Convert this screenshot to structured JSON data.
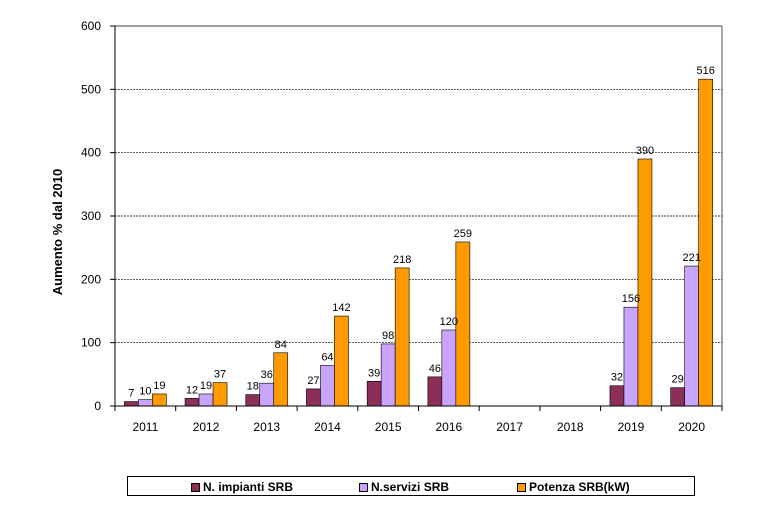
{
  "chart_data": {
    "type": "bar",
    "categories": [
      "2011",
      "2012",
      "2013",
      "2014",
      "2015",
      "2016",
      "2017",
      "2018",
      "2019",
      "2020"
    ],
    "series": [
      {
        "name": "N. impianti SRB",
        "color": "#8b2f58",
        "values": [
          7,
          12,
          18,
          27,
          39,
          46,
          null,
          null,
          32,
          29
        ]
      },
      {
        "name": "N.servizi SRB",
        "color": "#c8a4ff",
        "values": [
          10,
          19,
          36,
          64,
          98,
          120,
          null,
          null,
          156,
          221
        ]
      },
      {
        "name": "Potenza SRB(kW)",
        "color": "#ff9a00",
        "values": [
          19,
          37,
          84,
          142,
          218,
          259,
          null,
          null,
          390,
          516
        ]
      }
    ],
    "ylabel": "Aumento % dal 2010",
    "ylim": [
      0,
      600
    ],
    "yticks": [
      0,
      100,
      200,
      300,
      400,
      500,
      600
    ],
    "grid": true,
    "legend_position": "bottom"
  }
}
